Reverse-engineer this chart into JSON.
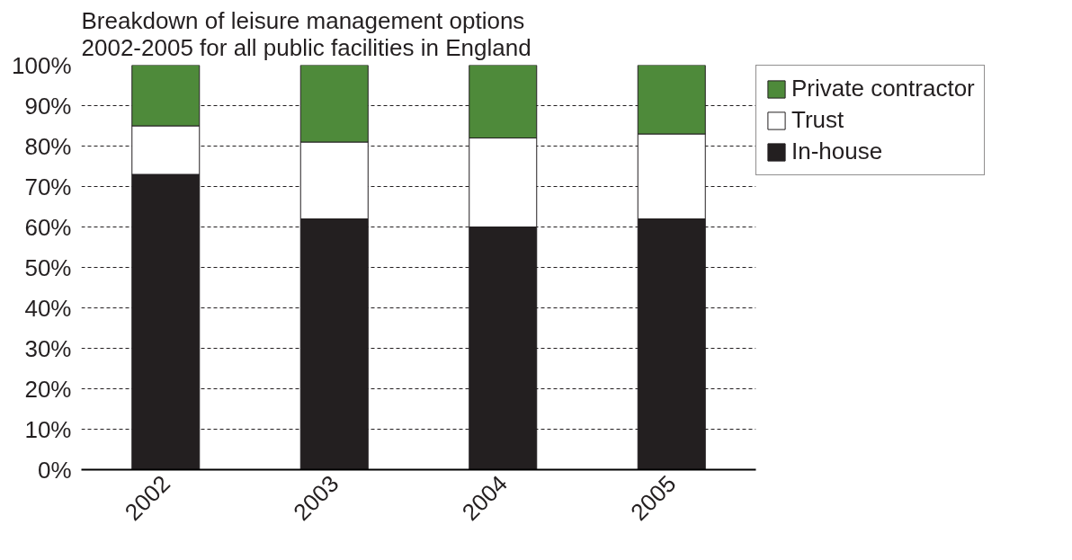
{
  "chart_data": {
    "type": "bar",
    "stacked": true,
    "title": "Breakdown of leisure management options\n2002-2005 for all public facilities in England",
    "categories": [
      "2002",
      "2003",
      "2004",
      "2005"
    ],
    "series": [
      {
        "name": "In-house",
        "color": "#231f20",
        "values": [
          73,
          62,
          60,
          62
        ]
      },
      {
        "name": "Trust",
        "color": "#ffffff",
        "values": [
          12,
          19,
          22,
          21
        ]
      },
      {
        "name": "Private contractor",
        "color": "#4e8a3a",
        "values": [
          15,
          19,
          18,
          17
        ]
      }
    ],
    "ylim": [
      0,
      100
    ],
    "yticks": [
      {
        "value": 0,
        "label": "0%"
      },
      {
        "value": 10,
        "label": "10%"
      },
      {
        "value": 20,
        "label": "20%"
      },
      {
        "value": 30,
        "label": "30%"
      },
      {
        "value": 40,
        "label": "40%"
      },
      {
        "value": 50,
        "label": "50%"
      },
      {
        "value": 60,
        "label": "60%"
      },
      {
        "value": 70,
        "label": "70%"
      },
      {
        "value": 80,
        "label": "80%"
      },
      {
        "value": 90,
        "label": "90%"
      },
      {
        "value": 100,
        "label": "100%"
      }
    ],
    "grid": "y",
    "legend": "top right"
  }
}
